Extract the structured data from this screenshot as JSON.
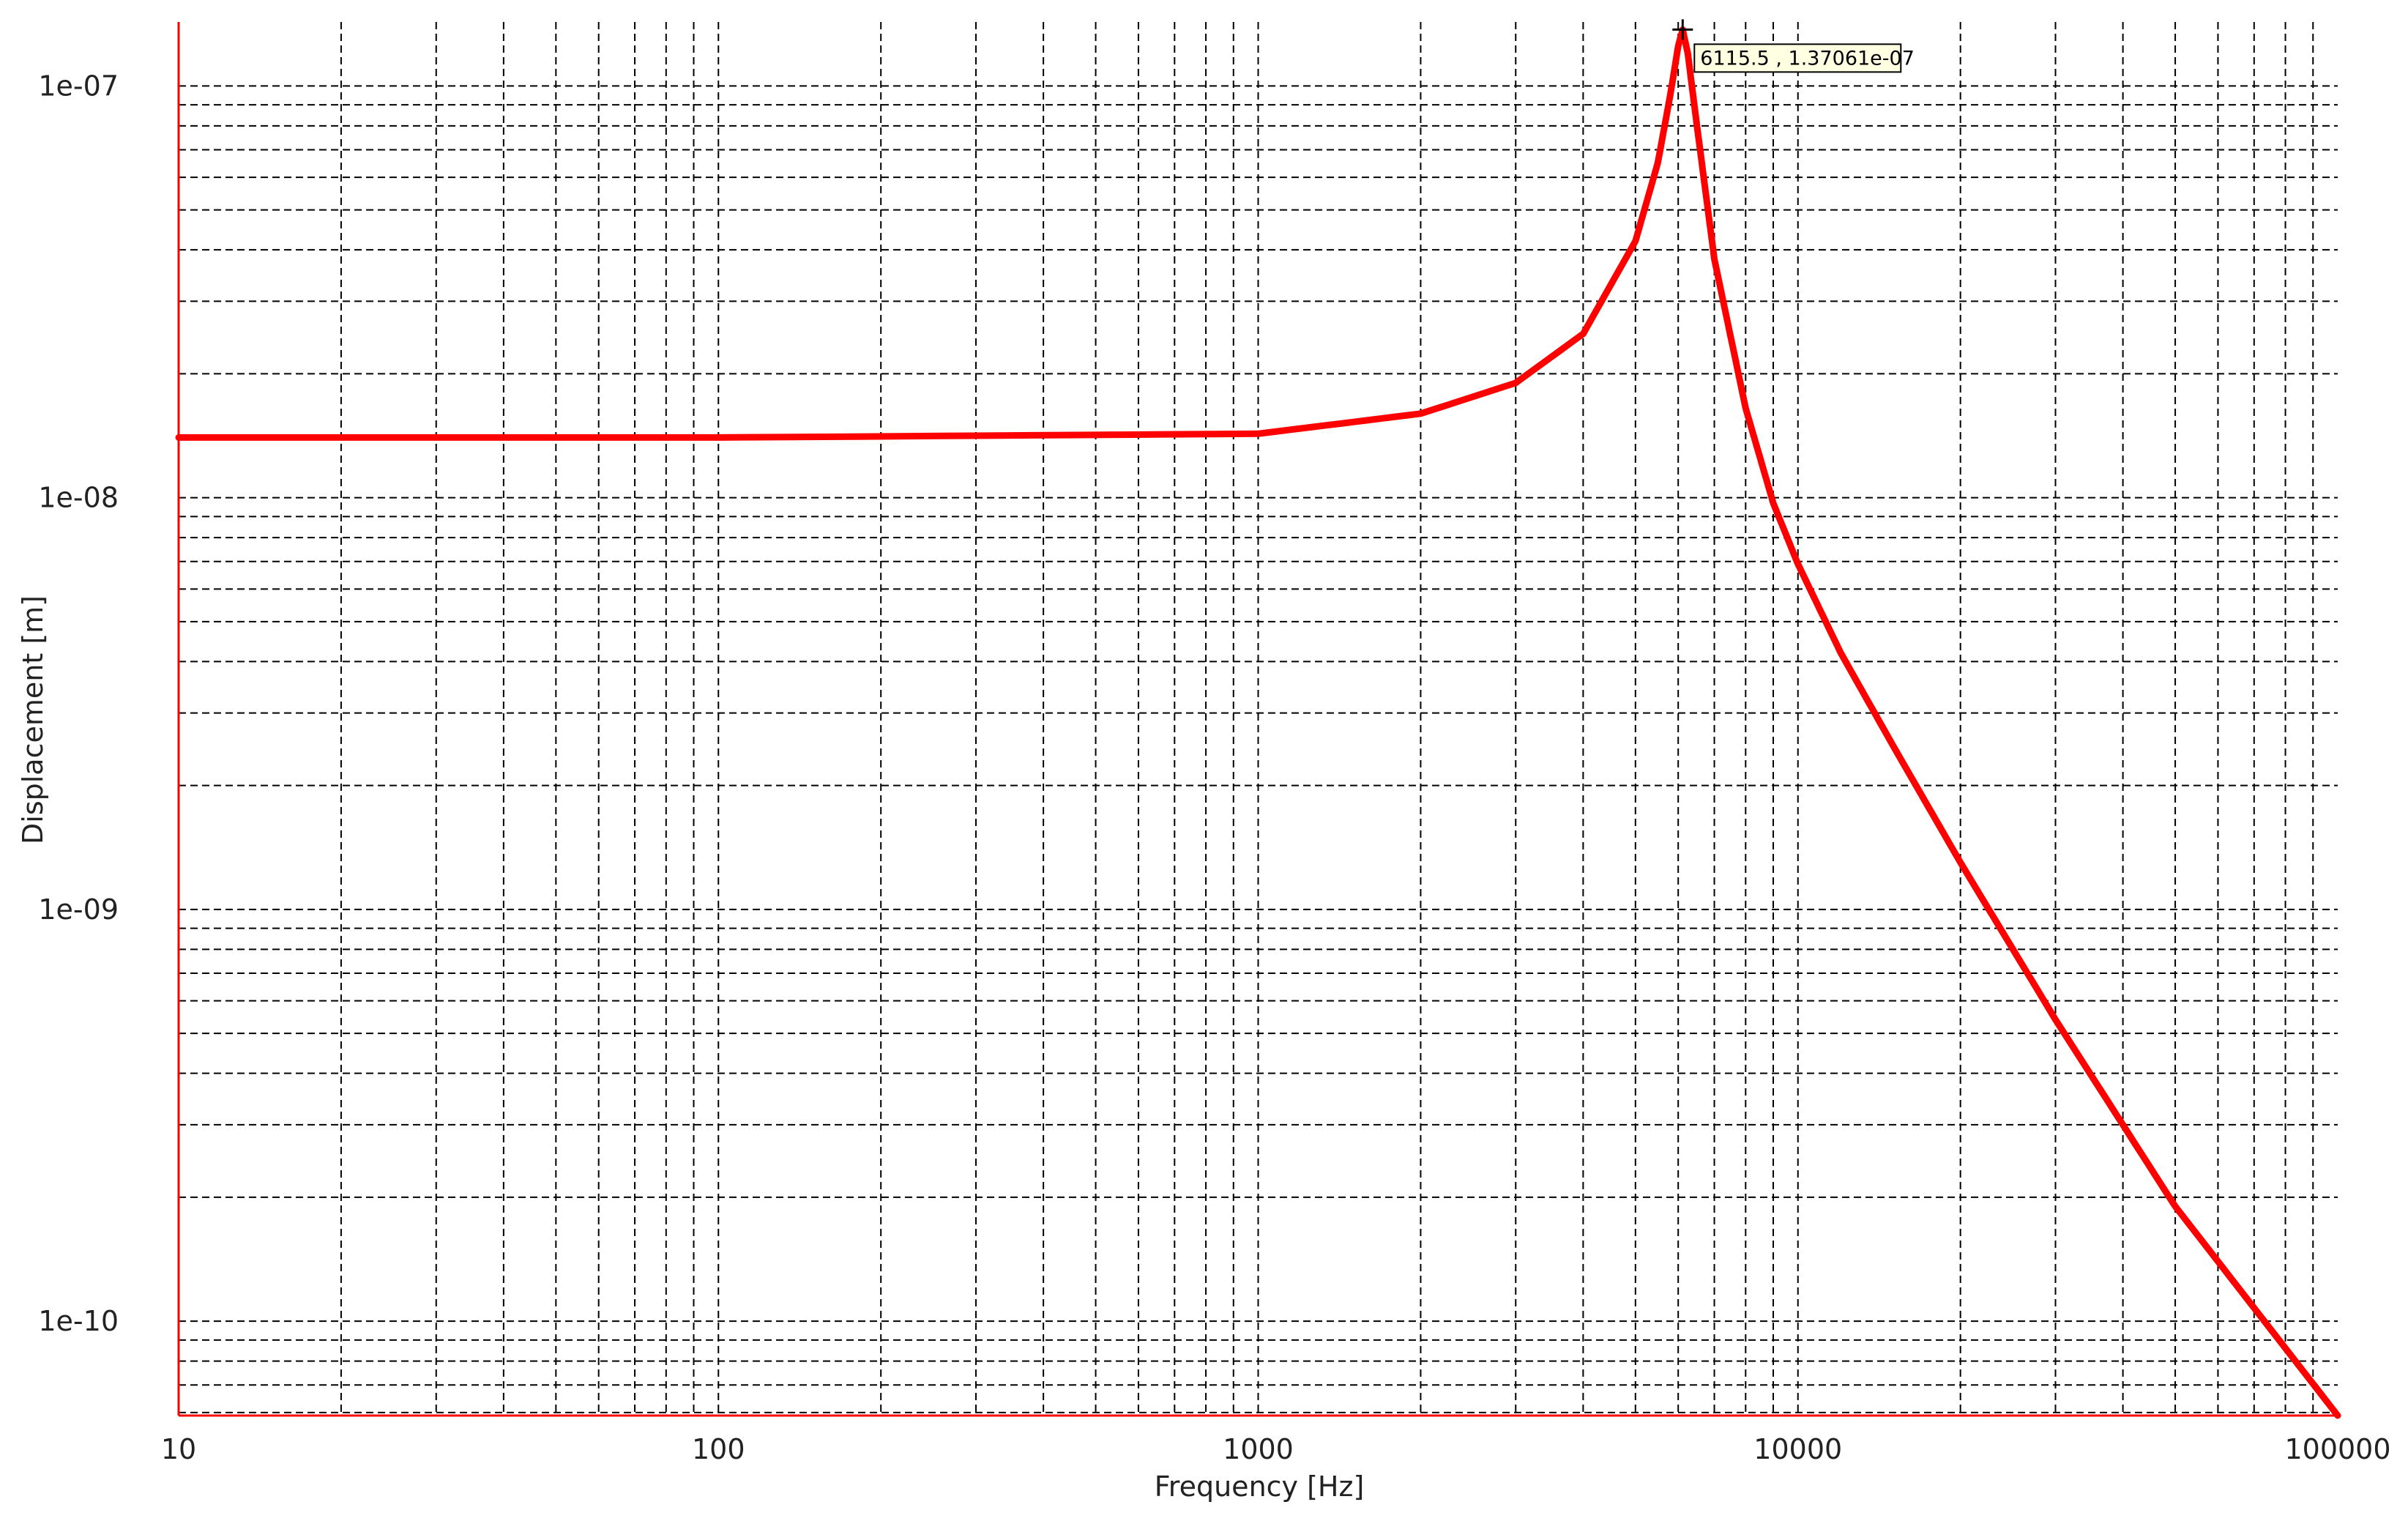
{
  "chart_data": {
    "type": "line",
    "xlabel": "Frequency [Hz]",
    "ylabel": "Displacement [m]",
    "xscale": "log",
    "yscale": "log",
    "xlim": [
      10,
      100000
    ],
    "ylim": [
      5.9e-11,
      1.43e-07
    ],
    "grid": true,
    "x_ticks": [
      "10",
      "100",
      "1000",
      "10000",
      "100000"
    ],
    "y_ticks": [
      "1e-10",
      "1e-09",
      "1e-08",
      "1e-07"
    ],
    "series": [
      {
        "color": "#ff0000",
        "x": [
          10,
          100,
          1000,
          2000,
          3000,
          4000,
          5000,
          5500,
          5800,
          6000,
          6115.5,
          6250,
          6500,
          7000,
          8000,
          9000,
          10000,
          12000,
          15000,
          20000,
          30000,
          50000,
          100000
        ],
        "y": [
          1.4e-08,
          1.4e-08,
          1.43e-08,
          1.6e-08,
          1.9e-08,
          2.5e-08,
          4.2e-08,
          6.5e-08,
          9.5e-08,
          1.25e-07,
          1.37061e-07,
          1.2e-07,
          8e-08,
          3.8e-08,
          1.65e-08,
          9.7e-09,
          6.9e-09,
          4.2e-09,
          2.5e-09,
          1.3e-09,
          5.4e-10,
          1.9e-10,
          5.9e-11
        ]
      }
    ],
    "annotation": {
      "x": 6115.5,
      "y": 1.37061e-07,
      "text": "6115.5 , 1.37061e-07"
    }
  }
}
